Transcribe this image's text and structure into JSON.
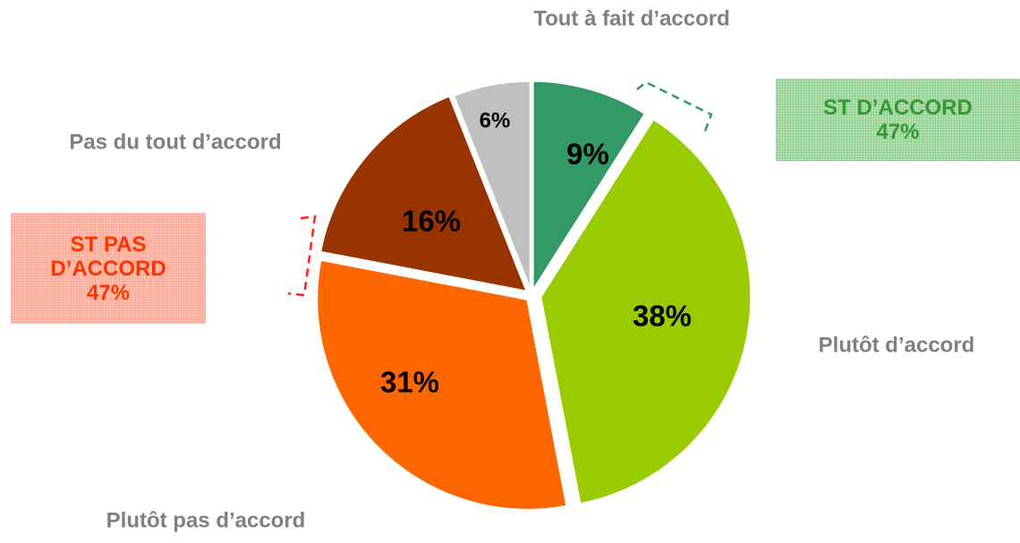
{
  "chart_data": {
    "type": "pie",
    "categories": [
      "Tout à fait d’accord",
      "Plutôt d’accord",
      "Plutôt pas d’accord",
      "Pas du tout d’accord",
      null
    ],
    "values": [
      9,
      38,
      31,
      16,
      6
    ],
    "value_labels": [
      "9%",
      "38%",
      "31%",
      "16%",
      "6%"
    ],
    "colors": [
      "#339966",
      "#99cc00",
      "#ff6600",
      "#993300",
      "#c0c0c0"
    ],
    "annotations": [
      {
        "text": "ST D’ACCORD",
        "value": 47,
        "value_label": "47%"
      },
      {
        "text": "ST PAS D’ACCORD",
        "value": 47,
        "value_label": "47%"
      }
    ]
  }
}
